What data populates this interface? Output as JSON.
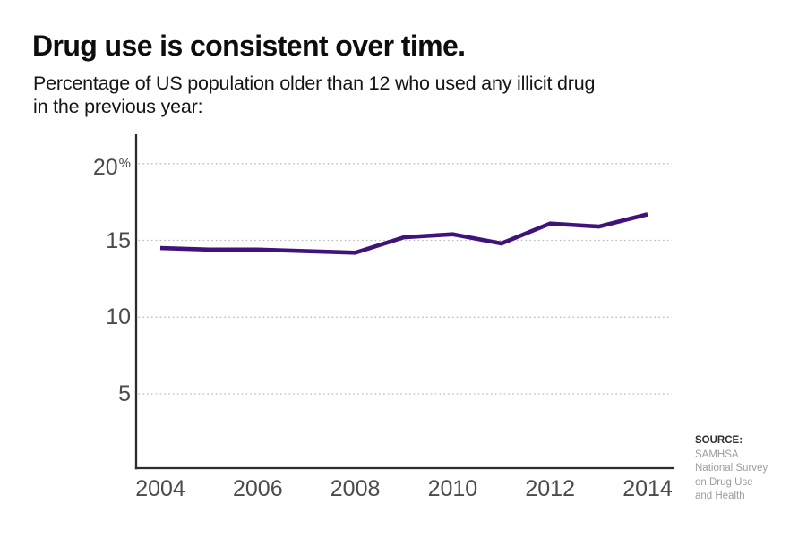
{
  "header": {
    "title": "Drug use is consistent over time.",
    "subtitle_line1": "Percentage of US population older than 12 who used any illicit drug",
    "subtitle_line2": "in the previous year:"
  },
  "source": {
    "label": "SOURCE:",
    "lines": [
      "SAMHSA",
      "National Survey",
      "on Drug Use",
      "and Health"
    ]
  },
  "chart_data": {
    "type": "line",
    "title": "Drug use is consistent over time.",
    "subtitle": "Percentage of US population older than 12 who used any illicit drug in the previous year:",
    "series_name": "Percent of US population older than 12 who used any illicit drug in previous year",
    "x": [
      2004,
      2005,
      2006,
      2007,
      2008,
      2009,
      2010,
      2011,
      2012,
      2013,
      2014
    ],
    "values": [
      14.5,
      14.4,
      14.4,
      14.3,
      14.2,
      15.2,
      15.4,
      14.8,
      16.1,
      15.9,
      16.7
    ],
    "x_ticks": [
      2004,
      2006,
      2008,
      2010,
      2012,
      2014
    ],
    "x_tick_labels": [
      "2004",
      "2006",
      "2008",
      "2010",
      "2012",
      "2014"
    ],
    "y_ticks": [
      {
        "value": 5,
        "label": "5",
        "suffix": ""
      },
      {
        "value": 10,
        "label": "10",
        "suffix": ""
      },
      {
        "value": 15,
        "label": "15",
        "suffix": ""
      },
      {
        "value": 20,
        "label": "20",
        "suffix": "%"
      }
    ],
    "xlim": [
      2003.5,
      2014.53
    ],
    "ylim": [
      0,
      21.9
    ],
    "grid": "horizontal-dotted",
    "legend": "none",
    "line_color": "#40127a",
    "axis_color": "#2d2d2d",
    "grid_color": "#bbbbbb",
    "tick_label_color": "#4b4b4d"
  }
}
